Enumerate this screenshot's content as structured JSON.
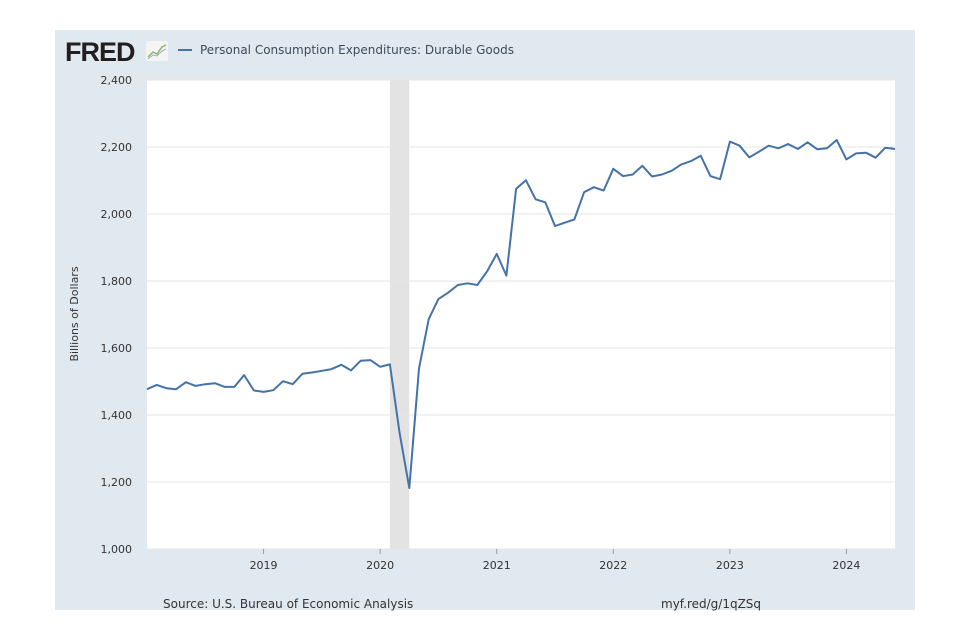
{
  "header": {
    "logo": "FRED",
    "logo_icon": "line-chart-icon",
    "legend_label": "Personal Consumption Expenditures: Durable Goods"
  },
  "footer": {
    "source": "Source: U.S. Bureau of Economic Analysis",
    "link": "myf.red/g/1qZSq"
  },
  "colors": {
    "series": "#4572a7",
    "recession": "#e3e3e3",
    "panel": "#e1e9f0"
  },
  "chart_data": {
    "type": "line",
    "title": "",
    "ylabel": "Billions of Dollars",
    "xlabel": "",
    "ylim": [
      1000,
      2400
    ],
    "yticks": [
      1000,
      1200,
      1400,
      1600,
      1800,
      2000,
      2200,
      2400
    ],
    "ytick_labels": [
      "1,000",
      "1,200",
      "1,400",
      "1,600",
      "1,800",
      "2,000",
      "2,200",
      "2,400"
    ],
    "xticks": [
      "2019",
      "2020",
      "2021",
      "2022",
      "2023",
      "2024"
    ],
    "x_start": "2018-01",
    "x_end": "2024-06",
    "frequency": "monthly",
    "grid": true,
    "recession": {
      "start": "2020-02",
      "end": "2020-04"
    },
    "series": [
      {
        "name": "Personal Consumption Expenditures: Durable Goods",
        "values": [
          1477,
          1490,
          1480,
          1477,
          1498,
          1487,
          1492,
          1495,
          1484,
          1484,
          1519,
          1473,
          1469,
          1474,
          1501,
          1492,
          1523,
          1527,
          1532,
          1537,
          1550,
          1533,
          1562,
          1564,
          1544,
          1551,
          1346,
          1182,
          1539,
          1686,
          1746,
          1765,
          1788,
          1793,
          1788,
          1828,
          1881,
          1816,
          2075,
          2101,
          2044,
          2035,
          1964,
          1974,
          1984,
          2065,
          2080,
          2070,
          2135,
          2113,
          2118,
          2144,
          2112,
          2118,
          2129,
          2148,
          2158,
          2174,
          2113,
          2104,
          2216,
          2204,
          2169,
          2186,
          2204,
          2196,
          2209,
          2194,
          2214,
          2193,
          2196,
          2221,
          2163,
          2181,
          2183,
          2168,
          2198,
          2194
        ]
      }
    ]
  }
}
